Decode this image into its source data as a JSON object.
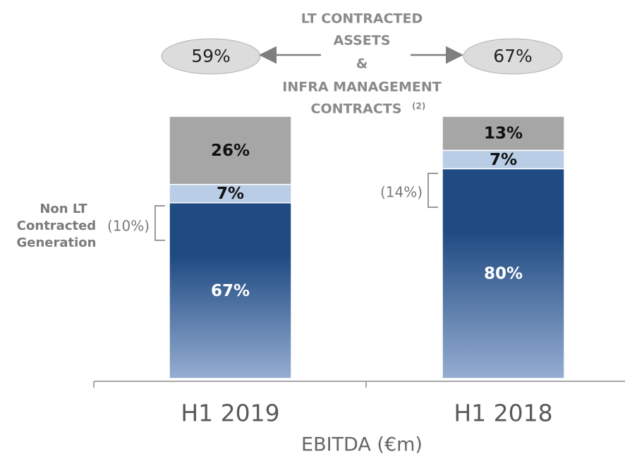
{
  "chart_data": {
    "type": "bar",
    "stacked": true,
    "categories": [
      "H1 2019",
      "H1 2018"
    ],
    "x_label": "EBITDA (€m)",
    "series": [
      {
        "color": "#1f4a82",
        "gradient_to": "#95add1",
        "label_color": "#ffffff",
        "values": [
          67,
          80
        ],
        "value_labels": [
          "67%",
          "80%"
        ]
      },
      {
        "color": "#b9cde6",
        "label_color": "#111111",
        "values": [
          7,
          7
        ],
        "value_labels": [
          "7%",
          "7%"
        ]
      },
      {
        "color": "#a6a6a6",
        "label_color": "#111111",
        "values": [
          26,
          13
        ],
        "value_labels": [
          "26%",
          "13%"
        ]
      }
    ],
    "heading": [
      "LT CONTRACTED",
      "ASSETS",
      "&",
      "INFRA MANAGEMENT",
      "CONTRACTS"
    ],
    "heading_note": "(2)",
    "callouts": [
      "59%",
      "67%"
    ],
    "brackets": [
      "(10%)",
      "(14%)"
    ],
    "side_note": [
      "Non LT",
      "Contracted",
      "Generation"
    ]
  }
}
